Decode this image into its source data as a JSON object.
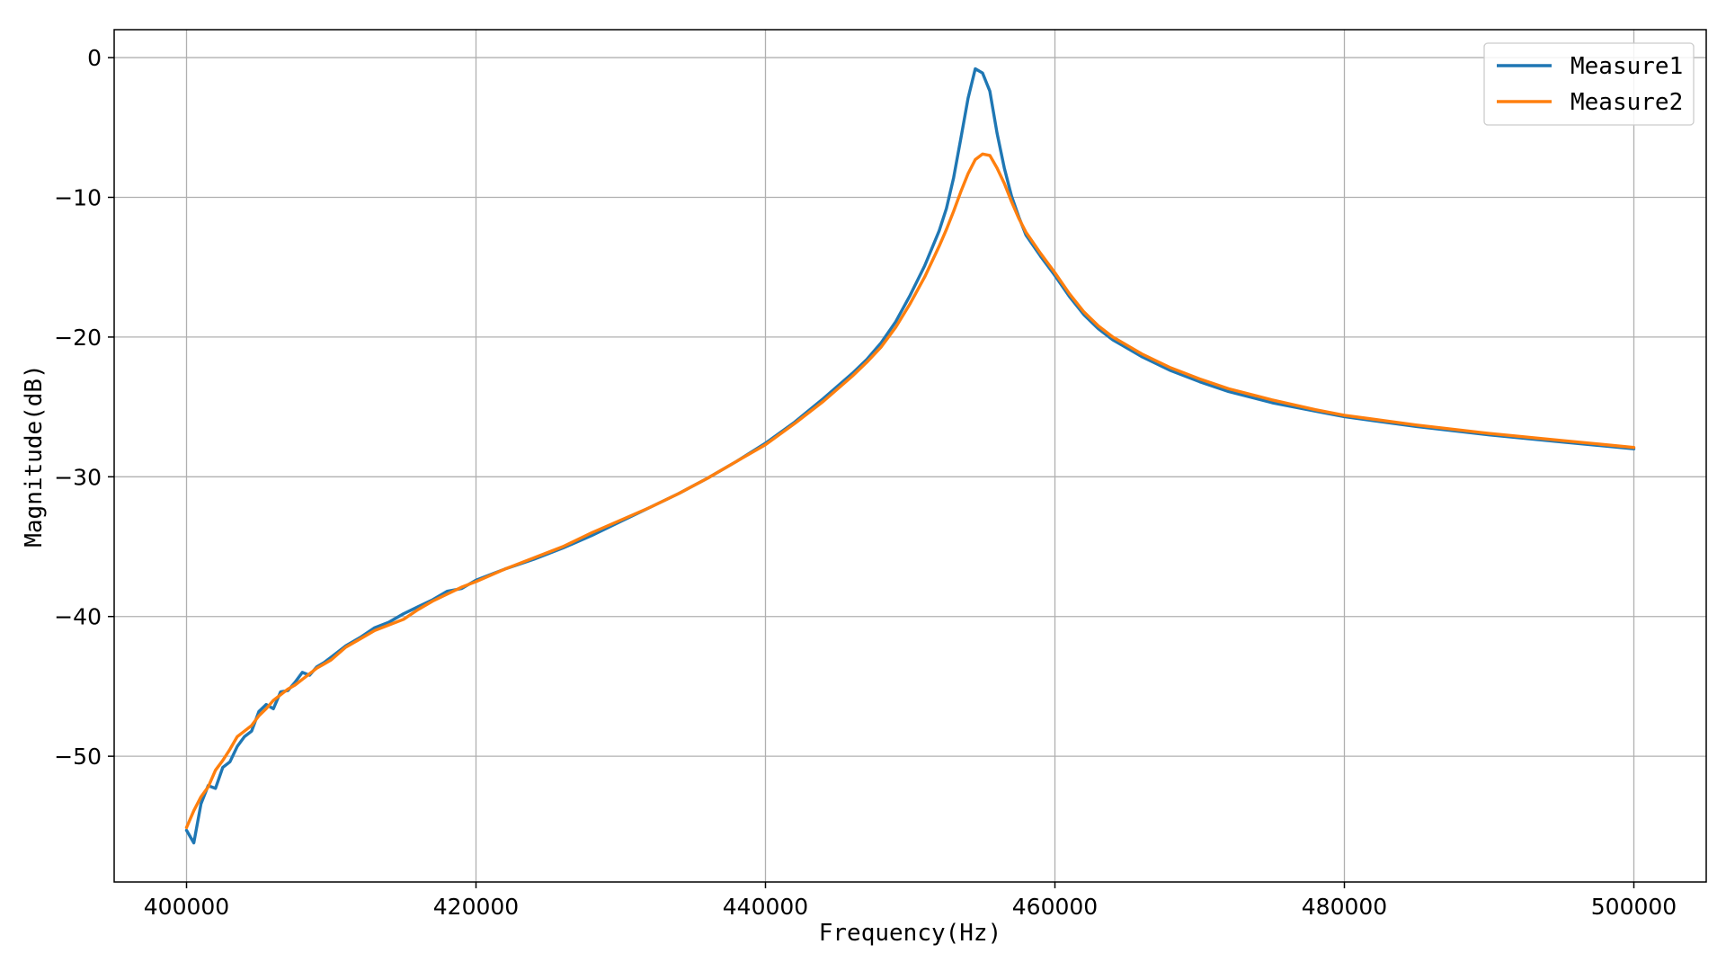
{
  "chart_data": {
    "type": "line",
    "title": "",
    "xlabel": "Frequency(Hz)",
    "ylabel": "Magnitude(dB)",
    "xlim": [
      395000,
      505000
    ],
    "ylim": [
      -59,
      2
    ],
    "xticks": [
      400000,
      420000,
      440000,
      460000,
      480000,
      500000
    ],
    "yticks": [
      0,
      -10,
      -20,
      -30,
      -40,
      -50
    ],
    "xtick_labels": [
      "400000",
      "420000",
      "440000",
      "460000",
      "480000",
      "500000"
    ],
    "ytick_labels": [
      "0",
      "−10",
      "−20",
      "−30",
      "−40",
      "−50"
    ],
    "grid": true,
    "legend_position": "top-right",
    "series": [
      {
        "name": "Measure1",
        "color": "#1f77b4",
        "x": [
          400000,
          400500,
          401000,
          401500,
          402000,
          402500,
          403000,
          403500,
          404000,
          404500,
          405000,
          405500,
          406000,
          406500,
          407000,
          407500,
          408000,
          408500,
          409000,
          409500,
          410000,
          411000,
          412000,
          413000,
          414000,
          415000,
          416000,
          417000,
          418000,
          419000,
          420000,
          422000,
          424000,
          426000,
          428000,
          430000,
          432000,
          434000,
          436000,
          438000,
          440000,
          442000,
          444000,
          446000,
          447000,
          448000,
          449000,
          450000,
          451000,
          452000,
          452500,
          453000,
          453500,
          454000,
          454500,
          455000,
          455500,
          456000,
          456500,
          457000,
          457500,
          458000,
          459000,
          460000,
          461000,
          462000,
          463000,
          464000,
          465000,
          466000,
          468000,
          470000,
          472000,
          475000,
          478000,
          480000,
          485000,
          490000,
          495000,
          500000
        ],
        "y": [
          -55.3,
          -56.2,
          -53.4,
          -52.1,
          -52.3,
          -50.8,
          -50.4,
          -49.3,
          -48.6,
          -48.2,
          -46.8,
          -46.3,
          -46.6,
          -45.4,
          -45.3,
          -44.7,
          -44.0,
          -44.2,
          -43.6,
          -43.3,
          -42.9,
          -42.1,
          -41.5,
          -40.8,
          -40.4,
          -39.8,
          -39.3,
          -38.8,
          -38.2,
          -38.0,
          -37.4,
          -36.6,
          -35.9,
          -35.1,
          -34.2,
          -33.2,
          -32.2,
          -31.2,
          -30.1,
          -28.9,
          -27.6,
          -26.1,
          -24.4,
          -22.6,
          -21.6,
          -20.4,
          -18.9,
          -17.0,
          -14.9,
          -12.4,
          -10.8,
          -8.6,
          -5.8,
          -2.9,
          -0.8,
          -1.1,
          -2.4,
          -5.4,
          -7.9,
          -9.9,
          -11.4,
          -12.7,
          -14.2,
          -15.6,
          -17.1,
          -18.4,
          -19.4,
          -20.2,
          -20.8,
          -21.4,
          -22.4,
          -23.2,
          -23.9,
          -24.7,
          -25.3,
          -25.7,
          -26.4,
          -27.0,
          -27.5,
          -28.0
        ]
      },
      {
        "name": "Measure2",
        "color": "#ff7f0e",
        "x": [
          400000,
          400500,
          401000,
          401500,
          402000,
          402500,
          403000,
          403500,
          404000,
          404500,
          405000,
          405500,
          406000,
          406500,
          407000,
          407500,
          408000,
          408500,
          409000,
          409500,
          410000,
          411000,
          412000,
          413000,
          414000,
          415000,
          416000,
          417000,
          418000,
          419000,
          420000,
          422000,
          424000,
          426000,
          428000,
          430000,
          432000,
          434000,
          436000,
          438000,
          440000,
          442000,
          444000,
          446000,
          447000,
          448000,
          449000,
          450000,
          451000,
          452000,
          452500,
          453000,
          453500,
          454000,
          454500,
          455000,
          455500,
          456000,
          456500,
          457000,
          457500,
          458000,
          459000,
          460000,
          461000,
          462000,
          463000,
          464000,
          465000,
          466000,
          468000,
          470000,
          472000,
          475000,
          478000,
          480000,
          485000,
          490000,
          495000,
          500000
        ],
        "y": [
          -55.1,
          -53.9,
          -52.9,
          -52.2,
          -51.0,
          -50.3,
          -49.5,
          -48.6,
          -48.2,
          -47.8,
          -47.1,
          -46.6,
          -46.0,
          -45.6,
          -45.2,
          -44.9,
          -44.5,
          -44.1,
          -43.7,
          -43.4,
          -43.1,
          -42.2,
          -41.6,
          -41.0,
          -40.6,
          -40.2,
          -39.5,
          -38.9,
          -38.4,
          -37.9,
          -37.5,
          -36.6,
          -35.8,
          -35.0,
          -34.0,
          -33.1,
          -32.2,
          -31.2,
          -30.1,
          -28.9,
          -27.7,
          -26.2,
          -24.6,
          -22.8,
          -21.8,
          -20.7,
          -19.3,
          -17.6,
          -15.7,
          -13.5,
          -12.3,
          -11.0,
          -9.6,
          -8.3,
          -7.3,
          -6.9,
          -7.0,
          -7.9,
          -9.0,
          -10.3,
          -11.5,
          -12.5,
          -14.0,
          -15.4,
          -16.9,
          -18.2,
          -19.2,
          -20.0,
          -20.6,
          -21.2,
          -22.2,
          -23.0,
          -23.7,
          -24.5,
          -25.2,
          -25.6,
          -26.3,
          -26.9,
          -27.4,
          -27.9
        ]
      }
    ]
  }
}
